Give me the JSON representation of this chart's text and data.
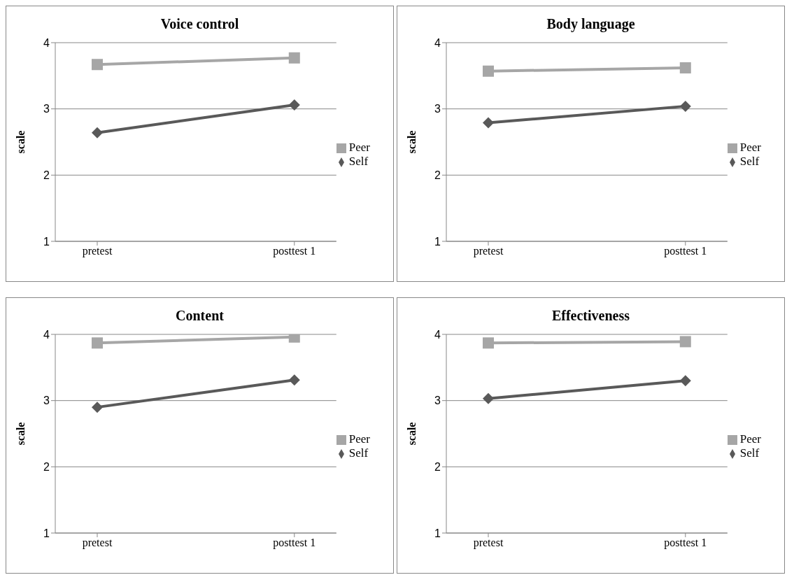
{
  "chart_data": [
    {
      "type": "line",
      "title": "Voice control",
      "ylabel": "scale",
      "categories": [
        "pretest",
        "posttest 1"
      ],
      "ylim": [
        1,
        4
      ],
      "yticks": [
        1,
        2,
        3,
        4
      ],
      "grid": "y",
      "legend": "right",
      "series": [
        {
          "name": "Self",
          "color": "#595959",
          "marker": "diamond",
          "values": [
            2.64,
            3.06
          ]
        },
        {
          "name": "Peer",
          "color": "#a6a6a6",
          "marker": "square",
          "values": [
            3.67,
            3.77
          ]
        }
      ]
    },
    {
      "type": "line",
      "title": "Body language",
      "ylabel": "scale",
      "categories": [
        "pretest",
        "posttest 1"
      ],
      "ylim": [
        1,
        4
      ],
      "yticks": [
        1,
        2,
        3,
        4
      ],
      "grid": "y",
      "legend": "right",
      "series": [
        {
          "name": "Self",
          "color": "#595959",
          "marker": "diamond",
          "values": [
            2.79,
            3.04
          ]
        },
        {
          "name": "Peer",
          "color": "#a6a6a6",
          "marker": "square",
          "values": [
            3.57,
            3.62
          ]
        }
      ]
    },
    {
      "type": "line",
      "title": "Content",
      "ylabel": "scale",
      "categories": [
        "pretest",
        "posttest 1"
      ],
      "ylim": [
        1,
        4
      ],
      "yticks": [
        1,
        2,
        3,
        4
      ],
      "grid": "y",
      "legend": "right",
      "series": [
        {
          "name": "Self",
          "color": "#595959",
          "marker": "diamond",
          "values": [
            2.9,
            3.31
          ]
        },
        {
          "name": "Peer",
          "color": "#a6a6a6",
          "marker": "square",
          "values": [
            3.87,
            3.96
          ]
        }
      ]
    },
    {
      "type": "line",
      "title": "Effectiveness",
      "ylabel": "scale",
      "categories": [
        "pretest",
        "posttest 1"
      ],
      "ylim": [
        1,
        4
      ],
      "yticks": [
        1,
        2,
        3,
        4
      ],
      "grid": "y",
      "legend": "right",
      "series": [
        {
          "name": "Self",
          "color": "#595959",
          "marker": "diamond",
          "values": [
            3.03,
            3.3
          ]
        },
        {
          "name": "Peer",
          "color": "#a6a6a6",
          "marker": "square",
          "values": [
            3.87,
            3.89
          ]
        }
      ]
    }
  ]
}
